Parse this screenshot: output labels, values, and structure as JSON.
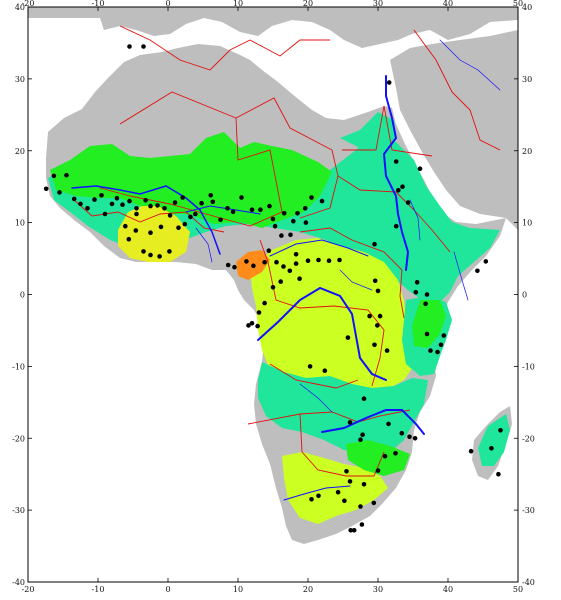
{
  "map": {
    "extent": {
      "lon_min": -20,
      "lon_max": 50,
      "lat_min": -40,
      "lat_max": 40
    },
    "axes": {
      "lon_ticks": [
        -20,
        -10,
        0,
        10,
        20,
        30,
        40,
        50
      ],
      "lat_ticks": [
        -40,
        -30,
        -20,
        -10,
        0,
        10,
        20,
        30,
        40
      ],
      "left_lat_labels": [
        "-40",
        "-30",
        "-20",
        "-10",
        "0",
        "10",
        "20",
        "30",
        "40"
      ],
      "right_lat_labels": [
        "-40",
        "-30",
        "-20",
        "-10",
        "0",
        "10",
        "20",
        "30",
        "40"
      ],
      "top_lon_labels": [
        "-20",
        "-10",
        "0",
        "10",
        "20",
        "30",
        "40",
        "50"
      ],
      "bottom_lon_labels": [
        "-20",
        "-10",
        "0",
        "10",
        "20",
        "30",
        "40",
        "50"
      ]
    },
    "colors": {
      "ocean": "#ffffff",
      "land": "#bebebe",
      "class_green": "#22ee22",
      "class_cyan_green": "#1fe69a",
      "class_yellow_green": "#ccff22",
      "class_yellow": "#e6ee22",
      "class_orange": "#ff8c1a",
      "borders": "#e01010",
      "rivers": "#1010ff",
      "stations": "#000000"
    },
    "stations": [
      [
        -5.5,
        34.5
      ],
      [
        -3.5,
        34.5
      ],
      [
        -17.4,
        14.7
      ],
      [
        -16.3,
        16.5
      ],
      [
        -15.5,
        14.2
      ],
      [
        -14.5,
        16.6
      ],
      [
        -13.4,
        13.3
      ],
      [
        -12.5,
        12.6
      ],
      [
        -11.5,
        12.0
      ],
      [
        -10.5,
        13.2
      ],
      [
        -9.5,
        13.8
      ],
      [
        -9.0,
        11.2
      ],
      [
        -8.0,
        12.6
      ],
      [
        -7.3,
        13.4
      ],
      [
        -6.5,
        12.5
      ],
      [
        -5.5,
        13.0
      ],
      [
        -4.5,
        12.0
      ],
      [
        -4.5,
        11.2
      ],
      [
        -3.2,
        13.1
      ],
      [
        -2.5,
        12.3
      ],
      [
        -1.5,
        12.4
      ],
      [
        -0.5,
        12.0
      ],
      [
        0.3,
        11.0
      ],
      [
        1.0,
        12.8
      ],
      [
        2.1,
        13.5
      ],
      [
        1.5,
        9.3
      ],
      [
        2.4,
        9.8
      ],
      [
        -1.0,
        9.4
      ],
      [
        -2.5,
        8.6
      ],
      [
        -3.5,
        6.0
      ],
      [
        -2.5,
        5.5
      ],
      [
        -1.2,
        5.3
      ],
      [
        0.2,
        6.0
      ],
      [
        -4.6,
        8.9
      ],
      [
        -6.1,
        9.5
      ],
      [
        -5.6,
        7.7
      ],
      [
        3.2,
        10.8
      ],
      [
        3.9,
        11.2
      ],
      [
        4.8,
        12.7
      ],
      [
        6.4,
        12.9
      ],
      [
        6.1,
        13.8
      ],
      [
        8.5,
        12.0
      ],
      [
        9.3,
        11.5
      ],
      [
        10.5,
        13.5
      ],
      [
        7.5,
        10.4
      ],
      [
        12.0,
        11.8
      ],
      [
        13.2,
        11.8
      ],
      [
        14.5,
        12.3
      ],
      [
        15.0,
        10.5
      ],
      [
        16.6,
        11.3
      ],
      [
        17.9,
        10.2
      ],
      [
        18.5,
        11.3
      ],
      [
        19.7,
        10.0
      ],
      [
        19.6,
        12.0
      ],
      [
        20.5,
        13.5
      ],
      [
        22.0,
        13.0
      ],
      [
        8.6,
        4.1
      ],
      [
        9.5,
        3.8
      ],
      [
        11.2,
        4.6
      ],
      [
        12.2,
        4.0
      ],
      [
        13.8,
        4.5
      ],
      [
        14.4,
        6.1
      ],
      [
        15.5,
        4.5
      ],
      [
        16.5,
        3.9
      ],
      [
        17.4,
        3.3
      ],
      [
        18.3,
        4.3
      ],
      [
        18.8,
        2.2
      ],
      [
        16.1,
        1.8
      ],
      [
        15.0,
        1.0
      ],
      [
        13.8,
        -1.2
      ],
      [
        13.0,
        -2.5
      ],
      [
        12.0,
        -4.0
      ],
      [
        11.5,
        -4.3
      ],
      [
        12.8,
        -4.4
      ],
      [
        18.3,
        5.6
      ],
      [
        20.0,
        4.7
      ],
      [
        21.5,
        4.8
      ],
      [
        23.0,
        4.7
      ],
      [
        24.5,
        4.8
      ],
      [
        17.5,
        8.3
      ],
      [
        16.2,
        8.2
      ],
      [
        15.3,
        9.5
      ],
      [
        29.5,
        7.0
      ],
      [
        31.6,
        29.5
      ],
      [
        32.6,
        18.5
      ],
      [
        32.9,
        14.5
      ],
      [
        34.3,
        12.8
      ],
      [
        32.6,
        9.5
      ],
      [
        33.5,
        15.0
      ],
      [
        36.0,
        17.5
      ],
      [
        35.6,
        1.7
      ],
      [
        37.0,
        0.0
      ],
      [
        36.8,
        -1.3
      ],
      [
        35.4,
        0.3
      ],
      [
        44.2,
        3.3
      ],
      [
        45.4,
        4.6
      ],
      [
        39.4,
        -5.7
      ],
      [
        39.0,
        -7.0
      ],
      [
        37.0,
        -5.5
      ],
      [
        37.5,
        -7.8
      ],
      [
        38.5,
        -8.0
      ],
      [
        29.6,
        1.9
      ],
      [
        30.0,
        0.5
      ],
      [
        28.8,
        -3.0
      ],
      [
        30.3,
        -3.0
      ],
      [
        29.5,
        -7.0
      ],
      [
        31.3,
        -7.8
      ],
      [
        29.9,
        -4.3
      ],
      [
        25.7,
        -6.0
      ],
      [
        22.4,
        -10.6
      ],
      [
        20.3,
        -10.0
      ],
      [
        28.0,
        -14.5
      ],
      [
        26.0,
        -17.8
      ],
      [
        27.8,
        -19.5
      ],
      [
        27.5,
        -20.2
      ],
      [
        31.5,
        -18.0
      ],
      [
        33.4,
        -19.3
      ],
      [
        32.5,
        -22.1
      ],
      [
        30.0,
        -24.5
      ],
      [
        31.0,
        -22.5
      ],
      [
        34.5,
        -19.8
      ],
      [
        35.3,
        -20.0
      ],
      [
        25.5,
        -24.6
      ],
      [
        28.0,
        -26.4
      ],
      [
        29.4,
        -29.0
      ],
      [
        25.2,
        -28.7
      ],
      [
        24.3,
        -27.5
      ],
      [
        21.5,
        -28.0
      ],
      [
        20.5,
        -28.5
      ],
      [
        26.0,
        -26.0
      ],
      [
        27.5,
        -29.5
      ],
      [
        26.6,
        -32.8
      ],
      [
        26.1,
        -32.8
      ],
      [
        27.7,
        -32.0
      ],
      [
        47.5,
        -18.9
      ],
      [
        43.3,
        -21.8
      ],
      [
        47.2,
        -25.0
      ],
      [
        46.2,
        -21.4
      ]
    ]
  }
}
